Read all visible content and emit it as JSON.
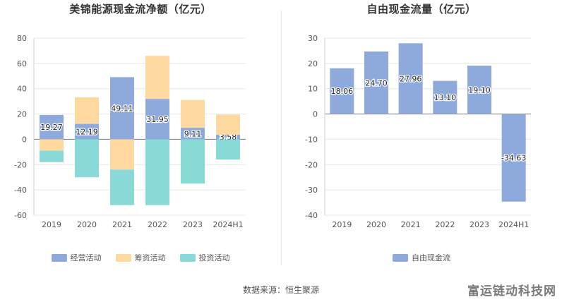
{
  "chart_data": [
    {
      "type": "bar",
      "stacked": true,
      "title": "美锦能源现金流净额（亿元）",
      "categories": [
        "2019",
        "2020",
        "2021",
        "2022",
        "2023",
        "2024H1"
      ],
      "ylim": [
        -60,
        80
      ],
      "yticks": [
        80,
        60,
        40,
        20,
        0,
        -20,
        -40,
        -60
      ],
      "grid": true,
      "legend_position": "bottom",
      "series": [
        {
          "name": "经营活动",
          "color": "#8eaadc",
          "values": [
            19.27,
            12.19,
            49.11,
            31.95,
            9.11,
            3.58
          ],
          "labels": [
            "19.27",
            "12.19",
            "49.11",
            "31.95",
            "9.11",
            "3.58"
          ]
        },
        {
          "name": "筹资活动",
          "color": "#fdd9a0",
          "values": [
            -9,
            21,
            -24,
            34,
            22,
            16
          ]
        },
        {
          "name": "投资活动",
          "color": "#89d9d9",
          "values": [
            -9,
            -30,
            -28,
            -52,
            -35,
            -16
          ]
        }
      ]
    },
    {
      "type": "bar",
      "title": "自由现金流量（亿元）",
      "categories": [
        "2019",
        "2020",
        "2021",
        "2022",
        "2023",
        "2024H1"
      ],
      "ylim": [
        -40,
        30
      ],
      "yticks": [
        30,
        20,
        10,
        0,
        -10,
        -20,
        -30,
        -40
      ],
      "grid": true,
      "legend_position": "bottom",
      "series": [
        {
          "name": "自由现金流",
          "color": "#8eaadc",
          "values": [
            18.06,
            24.7,
            27.96,
            13.1,
            19.1,
            -34.63
          ],
          "labels": [
            "18.06",
            "24.70",
            "27.96",
            "13.10",
            "19.10",
            "-34.63"
          ]
        }
      ]
    }
  ],
  "footer": {
    "source": "数据来源：恒生聚源",
    "watermark": "富运链动科技网"
  }
}
